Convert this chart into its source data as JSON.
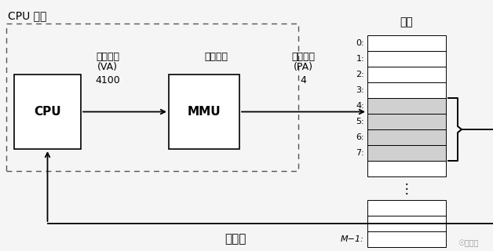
{
  "title": "CPU 芯片",
  "main_memory_title": "主存",
  "data_word_label": "数据字",
  "cpu_label": "CPU",
  "mmu_label": "MMU",
  "va_label": "虚拟地址",
  "va_sub": "(VA)",
  "va_value": "4100",
  "addr_trans_label": "地址翻译",
  "pa_label": "物理地址",
  "pa_sub": "(PA)",
  "pa_value": "4",
  "memory_rows": [
    "0:",
    "1:",
    "2:",
    "3:",
    "4:",
    "5:",
    "6:",
    "7:"
  ],
  "memory_last": "M−1:",
  "shaded_rows": [
    4,
    5,
    6,
    7
  ],
  "bg_color": "#f5f5f5",
  "shaded_color": "#d0d0d0",
  "font_size": 9,
  "chinese_font_size": 9
}
